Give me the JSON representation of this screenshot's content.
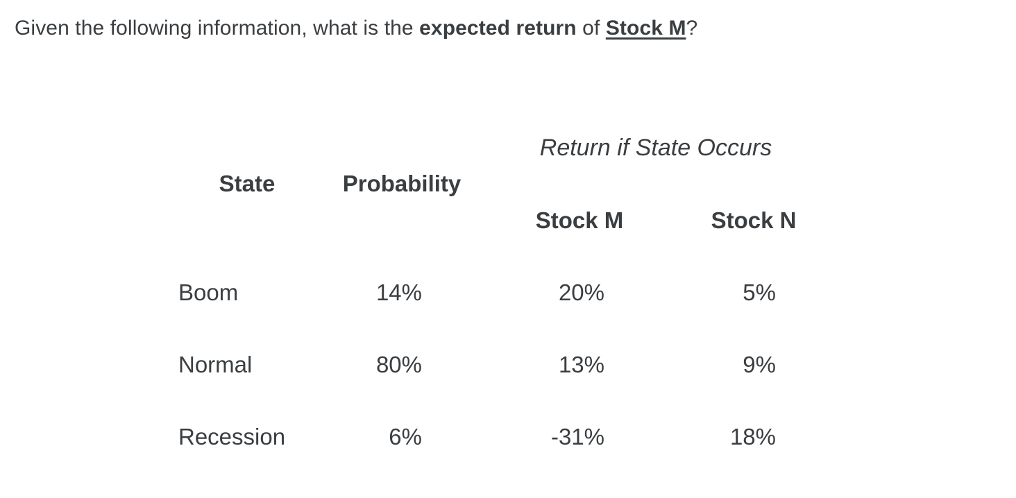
{
  "question": {
    "text_before_bold": "Given the following information, what is the ",
    "bold_text": "expected return",
    "text_between": " of ",
    "underlined_bold_text": "Stock M",
    "text_after": "?"
  },
  "table": {
    "caption": "Return if State Occurs",
    "headers": {
      "state": "State",
      "probability": "Probability",
      "stock_m": "Stock M",
      "stock_n": "Stock N"
    },
    "rows": [
      {
        "state": "Boom",
        "probability": "14%",
        "stock_m": "20%",
        "stock_n": "5%"
      },
      {
        "state": "Normal",
        "probability": "80%",
        "stock_m": "13%",
        "stock_n": "9%"
      },
      {
        "state": "Recession",
        "probability": "6%",
        "stock_m": "-31%",
        "stock_n": "18%"
      }
    ]
  },
  "colors": {
    "text": "#3a3e41",
    "background": "#ffffff"
  }
}
